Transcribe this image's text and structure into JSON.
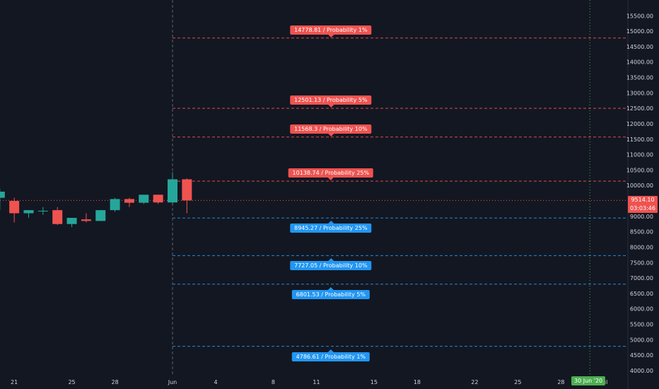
{
  "chart_data": {
    "type": "candlestick",
    "ylim": [
      3800,
      15800
    ],
    "y_ticks": [
      4000,
      4500,
      5000,
      5500,
      6000,
      6500,
      7000,
      7500,
      8000,
      8500,
      9000,
      9500,
      10000,
      10500,
      11000,
      11500,
      12000,
      12500,
      13000,
      13500,
      14000,
      14500,
      15000,
      15500
    ],
    "y_tick_labels": [
      "4000.00",
      "4500.00",
      "5000.00",
      "5500.00",
      "6000.00",
      "6500.00",
      "7000.00",
      "7500.00",
      "8000.00",
      "8500.00",
      "9000.00",
      "9500.00",
      "10000.00",
      "10500.00",
      "11000.00",
      "11500.00",
      "12000.00",
      "12500.00",
      "13000.00",
      "13500.00",
      "14000.00",
      "14500.00",
      "15000.00",
      "15500.00"
    ],
    "x_ticks": [
      {
        "day": -11,
        "label": "21"
      },
      {
        "day": -7,
        "label": "25"
      },
      {
        "day": -4,
        "label": "28"
      },
      {
        "day": 0,
        "label": "Jun"
      },
      {
        "day": 3,
        "label": "4"
      },
      {
        "day": 7,
        "label": "8"
      },
      {
        "day": 10,
        "label": "11"
      },
      {
        "day": 14,
        "label": "15"
      },
      {
        "day": 17,
        "label": "18"
      },
      {
        "day": 21,
        "label": "22"
      },
      {
        "day": 24,
        "label": "25"
      },
      {
        "day": 27,
        "label": "28"
      },
      {
        "day": 30,
        "label": "Jul"
      }
    ],
    "candles": [
      {
        "day": -12,
        "o": 9600,
        "h": 9900,
        "l": 9200,
        "c": 9800
      },
      {
        "day": -11,
        "o": 9500,
        "h": 9600,
        "l": 8800,
        "c": 9100
      },
      {
        "day": -10,
        "o": 9100,
        "h": 9200,
        "l": 8950,
        "c": 9200
      },
      {
        "day": -9,
        "o": 9170,
        "h": 9300,
        "l": 9050,
        "c": 9180
      },
      {
        "day": -8,
        "o": 9200,
        "h": 9300,
        "l": 8720,
        "c": 8750
      },
      {
        "day": -7,
        "o": 8750,
        "h": 8950,
        "l": 8650,
        "c": 8950
      },
      {
        "day": -6,
        "o": 8900,
        "h": 9100,
        "l": 8800,
        "c": 8850
      },
      {
        "day": -5,
        "o": 8850,
        "h": 9200,
        "l": 8850,
        "c": 9200
      },
      {
        "day": -4,
        "o": 9200,
        "h": 9600,
        "l": 9150,
        "c": 9560
      },
      {
        "day": -3,
        "o": 9560,
        "h": 9600,
        "l": 9300,
        "c": 9440
      },
      {
        "day": -2,
        "o": 9440,
        "h": 9700,
        "l": 9400,
        "c": 9700
      },
      {
        "day": -1,
        "o": 9700,
        "h": 9700,
        "l": 9400,
        "c": 9450
      },
      {
        "day": 0,
        "o": 9450,
        "h": 10430,
        "l": 9400,
        "c": 10200
      },
      {
        "day": 1,
        "o": 10200,
        "h": 10230,
        "l": 9100,
        "c": 9514.1
      }
    ],
    "current_price": 9514.1,
    "current_price_label": "9514.10",
    "countdown": "03:03:46",
    "levels_up": [
      {
        "price": 14778.81,
        "label": "14778.81 / Probability 1%"
      },
      {
        "price": 12501.13,
        "label": "12501.13 / Probability 5%"
      },
      {
        "price": 11568.3,
        "label": "11568.3 / Probability 10%"
      },
      {
        "price": 10138.74,
        "label": "10138.74 / Probability 25%"
      }
    ],
    "levels_down": [
      {
        "price": 8945.27,
        "label": "8945.27 / Probability 25%"
      },
      {
        "price": 7727.05,
        "label": "7727.05 / Probability 10%"
      },
      {
        "price": 6801.53,
        "label": "6801.53 / Probability 5%"
      },
      {
        "price": 4786.61,
        "label": "4786.61 / Probability 1%"
      }
    ],
    "level_label_day": 11,
    "vline_start_day": 0,
    "vline_end_day": 29,
    "end_date_label": "30 Jun '20",
    "colors": {
      "up": "#26a69a",
      "down": "#ef5350",
      "up_level": "#2196f3",
      "down_level": "#ef5350",
      "grid": "#2a2e39",
      "text": "#d1d4dc",
      "end_line": "#4caf50"
    }
  }
}
